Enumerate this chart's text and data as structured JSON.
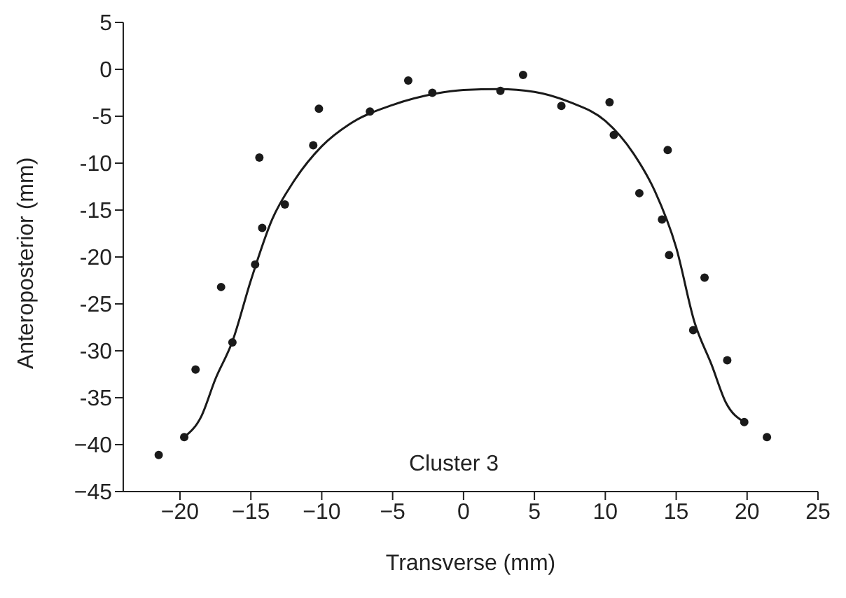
{
  "chart_data": {
    "type": "scatter",
    "xlabel": "Transverse (mm)",
    "ylabel": "Anteroposterior (mm)",
    "annotations": [
      "Cluster 3"
    ],
    "xlim": [
      -24,
      25
    ],
    "ylim": [
      -45,
      5
    ],
    "xticks": [
      {
        "value": -20,
        "label": "−20"
      },
      {
        "value": -15,
        "label": "−15"
      },
      {
        "value": -10,
        "label": "−10"
      },
      {
        "value": -5,
        "label": "−5"
      },
      0,
      5,
      10,
      15,
      20,
      25
    ],
    "yticks": [
      5,
      0,
      {
        "value": -5,
        "label": "-5"
      },
      {
        "value": -10,
        "label": "-10"
      },
      {
        "value": -15,
        "label": "-15"
      },
      {
        "value": -20,
        "label": "-20"
      },
      {
        "value": -25,
        "label": "-25"
      },
      {
        "value": -30,
        "label": "-30"
      },
      {
        "value": -35,
        "label": "-35"
      },
      {
        "value": -40,
        "label": "−40"
      },
      {
        "value": -45,
        "label": "−45"
      }
    ],
    "grid": false,
    "legend": false,
    "series": [
      {
        "color": "#1a1a1a",
        "marker": "circle",
        "x": [
          -21.5,
          -19.7,
          -18.9,
          -17.1,
          -16.3,
          -14.7,
          -14.2,
          -14.4,
          -12.6,
          -10.6,
          -10.2,
          -6.6,
          -3.9,
          -2.2,
          2.6,
          4.2,
          6.9,
          10.3,
          10.6,
          14.4,
          12.4,
          14.0,
          14.5,
          17.0,
          16.2,
          18.6,
          19.8,
          21.4
        ],
        "values": [
          -41.1,
          -39.2,
          -32.0,
          -23.2,
          -29.1,
          -20.8,
          -16.9,
          -9.4,
          -14.4,
          -8.1,
          -4.2,
          -4.5,
          -1.2,
          -2.5,
          -2.3,
          -0.6,
          -3.9,
          -3.5,
          -7.0,
          -8.6,
          -13.2,
          -16.0,
          -19.8,
          -22.2,
          -27.8,
          -31.0,
          -37.6,
          -39.2
        ]
      },
      {
        "type": "line",
        "color": "#1a1a1a",
        "marker": "none",
        "line_style": "solid",
        "x": [
          -19.7,
          -18.5,
          -17.5,
          -16.3,
          -15,
          -13.5,
          -12,
          -10,
          -8,
          -5,
          -2,
          0,
          2.5,
          5,
          7.5,
          10,
          12,
          13.5,
          15,
          16.3,
          17.5,
          18.5,
          19.8
        ],
        "values": [
          -39.2,
          -37,
          -33,
          -29,
          -22.5,
          -16,
          -12,
          -8.2,
          -5.8,
          -3.8,
          -2.6,
          -2.2,
          -2.1,
          -2.4,
          -3.5,
          -5.5,
          -9,
          -13,
          -19,
          -27,
          -31.5,
          -35.5,
          -37.6
        ]
      }
    ]
  }
}
